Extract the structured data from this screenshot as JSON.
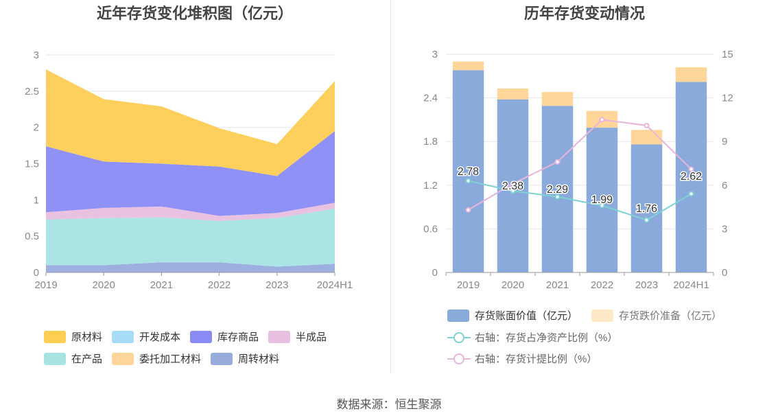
{
  "left_title": "近年存货变化堆积图（亿元）",
  "right_title": "历年存货变动情况",
  "source": "数据来源：恒生聚源",
  "colors": {
    "raw_material": "#FDCE54",
    "dev_cost": "#A7DCF8",
    "finished_goods": "#8A8BF5",
    "semi_finished": "#E8BFE0",
    "wip": "#A7E3E3",
    "consigned": "#FFD699",
    "turnover": "#97ABDC",
    "book_value": "#8AAADB",
    "impairment": "#FFD699",
    "ratio_net_assets": "#7DD3D3",
    "ratio_provision": "#E7B4DC"
  },
  "chart_data": [
    {
      "type": "area",
      "title": "近年存货变化堆积图（亿元）",
      "categories": [
        "2019",
        "2020",
        "2021",
        "2022",
        "2023",
        "2024H1"
      ],
      "ylim": [
        0,
        3
      ],
      "yticks": [
        "0",
        "0.5",
        "1",
        "1.5",
        "2",
        "2.5",
        "3"
      ],
      "stacked": true,
      "series": [
        {
          "name": "周转材料",
          "key": "turnover",
          "values": [
            0.1,
            0.1,
            0.14,
            0.14,
            0.08,
            0.12
          ]
        },
        {
          "name": "在产品",
          "key": "wip",
          "values": [
            0.63,
            0.65,
            0.62,
            0.57,
            0.67,
            0.76
          ]
        },
        {
          "name": "半成品",
          "key": "semi_finished",
          "values": [
            0.1,
            0.14,
            0.15,
            0.07,
            0.07,
            0.08
          ]
        },
        {
          "name": "库存商品",
          "key": "finished_goods",
          "values": [
            0.91,
            0.64,
            0.59,
            0.68,
            0.51,
            0.99
          ]
        },
        {
          "name": "原材料",
          "key": "raw_material",
          "values": [
            1.06,
            0.86,
            0.79,
            0.53,
            0.44,
            0.69
          ]
        },
        {
          "name": "开发成本",
          "key": "dev_cost",
          "values": [
            0,
            0,
            0,
            0,
            0,
            0
          ]
        },
        {
          "name": "委托加工材料",
          "key": "consigned",
          "values": [
            0,
            0,
            0,
            0,
            0,
            0
          ]
        }
      ],
      "legend": [
        {
          "name": "原材料",
          "key": "raw_material"
        },
        {
          "name": "开发成本",
          "key": "dev_cost"
        },
        {
          "name": "库存商品",
          "key": "finished_goods"
        },
        {
          "name": "半成品",
          "key": "semi_finished"
        },
        {
          "name": "在产品",
          "key": "wip"
        },
        {
          "name": "委托加工材料",
          "key": "consigned"
        },
        {
          "name": "周转材料",
          "key": "turnover"
        }
      ],
      "legend_position": "bottom",
      "grid": true
    },
    {
      "type": "bar",
      "title": "历年存货变动情况",
      "categories": [
        "2019",
        "2020",
        "2021",
        "2022",
        "2023",
        "2024H1"
      ],
      "ylim": [
        0,
        3
      ],
      "yticks": [
        "0",
        "0.6",
        "1.2",
        "1.8",
        "2.4",
        "3"
      ],
      "y2lim": [
        0,
        15
      ],
      "y2ticks": [
        "0",
        "3",
        "6",
        "9",
        "12",
        "15"
      ],
      "stacked": true,
      "series": [
        {
          "name": "存货账面价值（亿元）",
          "key": "book_value",
          "values": [
            2.78,
            2.38,
            2.29,
            1.99,
            1.76,
            2.62
          ],
          "labels": [
            "2.78",
            "2.38",
            "2.29",
            "1.99",
            "1.76",
            "2.62"
          ]
        },
        {
          "name": "存货跌价准备（亿元）",
          "key": "impairment",
          "values": [
            0.12,
            0.15,
            0.19,
            0.23,
            0.2,
            0.2
          ]
        }
      ],
      "line_series": [
        {
          "name": "右轴：存货占净资产比例（%）",
          "key": "ratio_net_assets",
          "axis": "right",
          "values": [
            6.3,
            5.6,
            5.2,
            4.6,
            3.6,
            5.4
          ]
        },
        {
          "name": "右轴：存货计提比例（%）",
          "key": "ratio_provision",
          "axis": "right",
          "values": [
            4.3,
            6.1,
            7.6,
            10.5,
            10.1,
            7.1
          ]
        }
      ],
      "legend_position": "bottom",
      "grid": true
    }
  ]
}
